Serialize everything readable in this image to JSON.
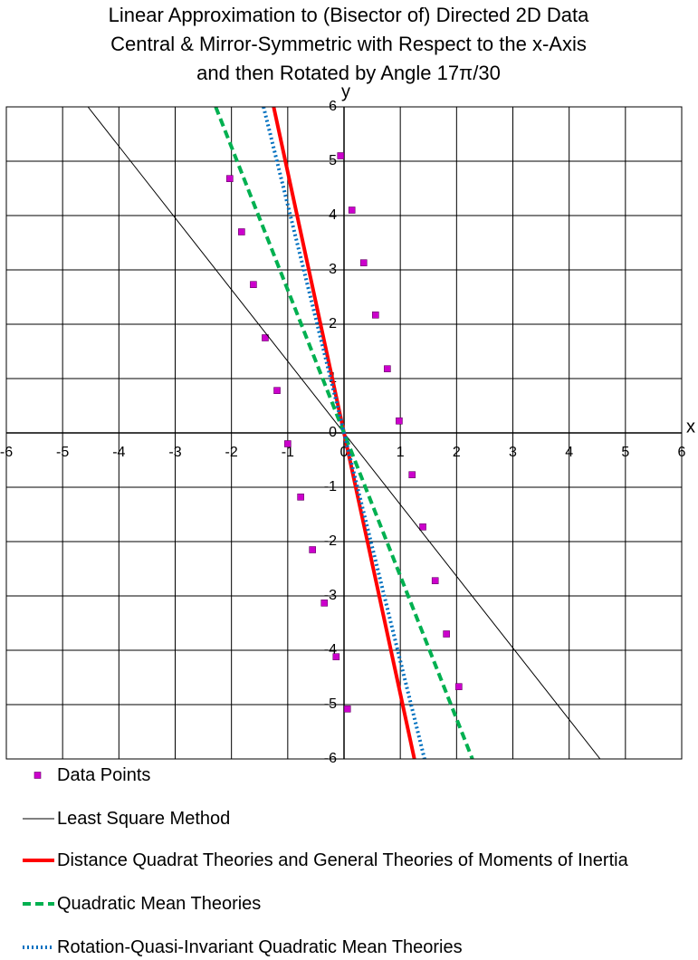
{
  "chart_data": {
    "type": "scatter",
    "title": [
      "Linear Approximation to (Bisector of) Directed 2D Data",
      "Central & Mirror-Symmetric with Respect to the x-Axis",
      "and then Rotated by Angle 17π/30"
    ],
    "x_label": "x",
    "y_label": "y",
    "xlim": [
      -6,
      6
    ],
    "ylim": [
      -6,
      6
    ],
    "xticks": [
      -6,
      -5,
      -4,
      -3,
      -2,
      -1,
      0,
      1,
      2,
      3,
      4,
      5,
      6
    ],
    "yticks": [
      -6,
      -5,
      -4,
      -3,
      -2,
      -1,
      0,
      1,
      2,
      3,
      4,
      5,
      6
    ],
    "grid": true,
    "series": [
      {
        "name": "Data Points",
        "type": "scatter",
        "color": "#cc00cc",
        "x": [
          -2.03,
          -1.82,
          -1.61,
          -1.4,
          -1.19,
          -1.0,
          -0.77,
          -0.56,
          -0.35,
          -0.14,
          0.06,
          -0.06,
          0.14,
          0.35,
          0.56,
          0.77,
          0.98,
          1.21,
          1.4,
          1.62,
          1.82,
          2.04
        ],
        "y": [
          4.68,
          3.7,
          2.73,
          1.75,
          0.78,
          -0.2,
          -1.18,
          -2.15,
          -3.13,
          -4.12,
          -5.08,
          5.1,
          4.1,
          3.13,
          2.17,
          1.18,
          0.22,
          -0.77,
          -1.73,
          -2.72,
          -3.7,
          -4.67
        ]
      },
      {
        "name": "Least Square Method",
        "type": "line",
        "color": "#000000",
        "line_style": "thin",
        "x": [
          -4.55,
          4.55
        ],
        "y": [
          6,
          -6
        ]
      },
      {
        "name": "Distance Quadrat Theories and General Theories of Moments of Inertia",
        "type": "line",
        "color": "#ff0000",
        "line_style": "solid",
        "x": [
          -1.25,
          1.25
        ],
        "y": [
          6,
          -6
        ]
      },
      {
        "name": "Quadratic Mean Theories",
        "type": "line",
        "color": "#00b050",
        "line_style": "dashed",
        "x": [
          -2.28,
          2.28
        ],
        "y": [
          6,
          -6
        ]
      },
      {
        "name": "Rotation-Quasi-Invariant Quadratic Mean Theories",
        "type": "line",
        "color": "#0070c0",
        "line_style": "dotted",
        "x": [
          -1.43,
          1.43
        ],
        "y": [
          6,
          -6
        ]
      }
    ]
  }
}
